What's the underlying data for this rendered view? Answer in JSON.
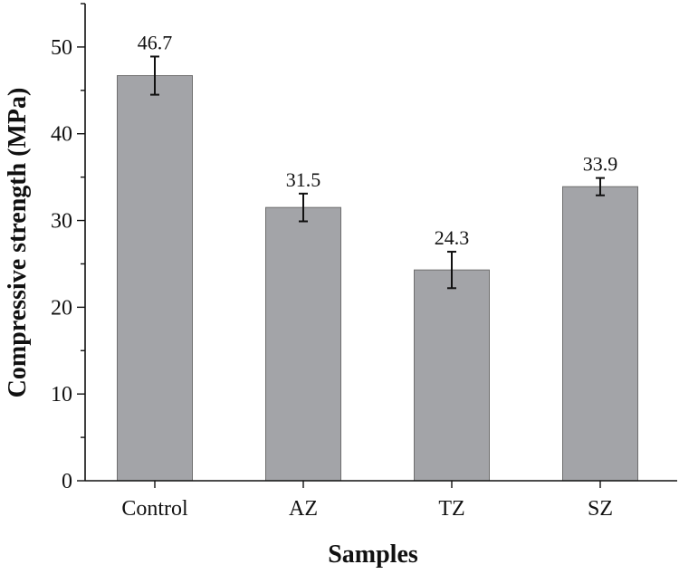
{
  "chart_data": {
    "type": "bar",
    "title": "",
    "xlabel": "Samples",
    "ylabel": "Compressive strength (MPa)",
    "categories": [
      "Control",
      "AZ",
      "TZ",
      "SZ"
    ],
    "values": [
      46.7,
      31.5,
      24.3,
      33.9
    ],
    "value_labels": [
      "46.7",
      "31.5",
      "24.3",
      "33.9"
    ],
    "error_bars": [
      2.2,
      1.6,
      2.1,
      1.0
    ],
    "ylim": [
      0,
      55
    ],
    "yticks": [
      0,
      10,
      20,
      30,
      40,
      50
    ],
    "ytick_labels": [
      "0",
      "10",
      "20",
      "30",
      "40",
      "50"
    ],
    "minor_yticks": [
      5,
      15,
      25,
      35,
      45,
      55
    ],
    "grid": false,
    "legend": "none",
    "bar_color": "#a3a4a8"
  }
}
